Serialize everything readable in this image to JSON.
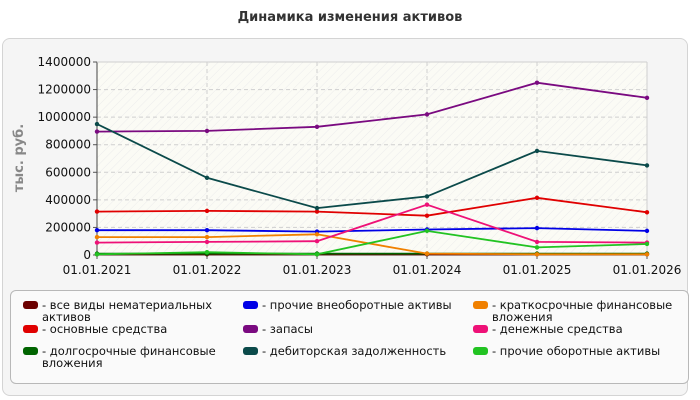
{
  "chart_data": {
    "type": "line",
    "title": "Динамика изменения активов",
    "ylabel": "тыс. руб.",
    "xlabel": "",
    "x": [
      "01.01.2021",
      "01.01.2022",
      "01.01.2023",
      "01.01.2024",
      "01.01.2025",
      "01.01.2026"
    ],
    "ylim": [
      0,
      1400000
    ],
    "yticks": [
      "0",
      "200000",
      "400000",
      "600000",
      "800000",
      "1000000",
      "1200000",
      "1400000"
    ],
    "grid": true,
    "legend_position": "bottom",
    "series": [
      {
        "name": "- все виды нематериальных активов",
        "color": "#6b0000",
        "values": [
          5000,
          5000,
          5000,
          5000,
          5000,
          5000
        ]
      },
      {
        "name": "- основные средства",
        "color": "#e00000",
        "values": [
          315000,
          320000,
          315000,
          285000,
          415000,
          310000
        ]
      },
      {
        "name": "- долгосрочные финансовые вложения",
        "color": "#006400",
        "values": [
          10000,
          10000,
          10000,
          10000,
          10000,
          10000
        ]
      },
      {
        "name": "- прочие внеоборотные активы",
        "color": "#0000e6",
        "values": [
          180000,
          180000,
          170000,
          185000,
          195000,
          175000
        ]
      },
      {
        "name": "- запасы",
        "color": "#7a0a80",
        "values": [
          895000,
          900000,
          930000,
          1020000,
          1250000,
          1140000
        ]
      },
      {
        "name": "- дебиторская задолженность",
        "color": "#0b4a4a",
        "values": [
          950000,
          560000,
          340000,
          425000,
          755000,
          650000
        ]
      },
      {
        "name": "- краткосрочные финансовые вложения",
        "color": "#f08000",
        "values": [
          130000,
          130000,
          150000,
          10000,
          5000,
          5000
        ]
      },
      {
        "name": "- денежные средства",
        "color": "#ee1177",
        "values": [
          90000,
          95000,
          100000,
          365000,
          95000,
          90000
        ]
      },
      {
        "name": "- прочие оборотные активы",
        "color": "#22c322",
        "values": [
          5000,
          20000,
          5000,
          175000,
          55000,
          80000
        ]
      }
    ]
  }
}
